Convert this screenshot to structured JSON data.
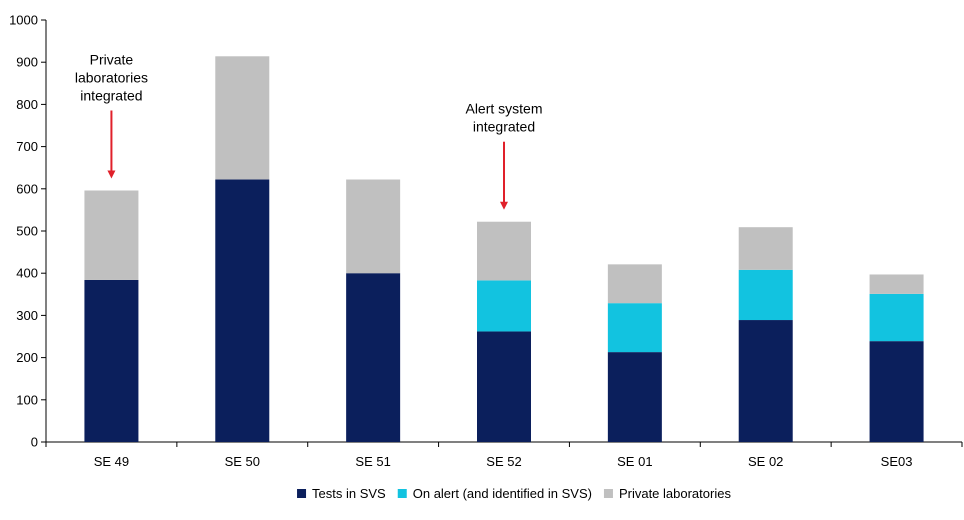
{
  "chart_data": {
    "type": "bar",
    "stacked": true,
    "categories": [
      "SE 49",
      "SE 50",
      "SE 51",
      "SE 52",
      "SE 01",
      "SE 02",
      "SE03"
    ],
    "series": [
      {
        "name": "Tests in SVS",
        "color": "#0B1F5C",
        "values": [
          384,
          622,
          400,
          262,
          213,
          289,
          239
        ]
      },
      {
        "name": "On alert (and identified in SVS)",
        "color": "#12C3E0",
        "values": [
          0,
          0,
          0,
          121,
          116,
          119,
          112
        ]
      },
      {
        "name": "Private laboratories",
        "color": "#C0C0C0",
        "values": [
          212,
          292,
          222,
          139,
          92,
          101,
          46
        ]
      }
    ],
    "ylim": [
      0,
      1000
    ],
    "yticks": [
      0,
      100,
      200,
      300,
      400,
      500,
      600,
      700,
      800,
      900,
      1000
    ],
    "grid": false,
    "legend_position": "bottom",
    "annotations": [
      {
        "category": "SE 49",
        "lines": [
          "Private",
          "laboratories",
          "integrated"
        ],
        "arrow_color": "#E0202A"
      },
      {
        "category": "SE 52",
        "lines": [
          "Alert system",
          "integrated"
        ],
        "arrow_color": "#E0202A"
      }
    ]
  }
}
